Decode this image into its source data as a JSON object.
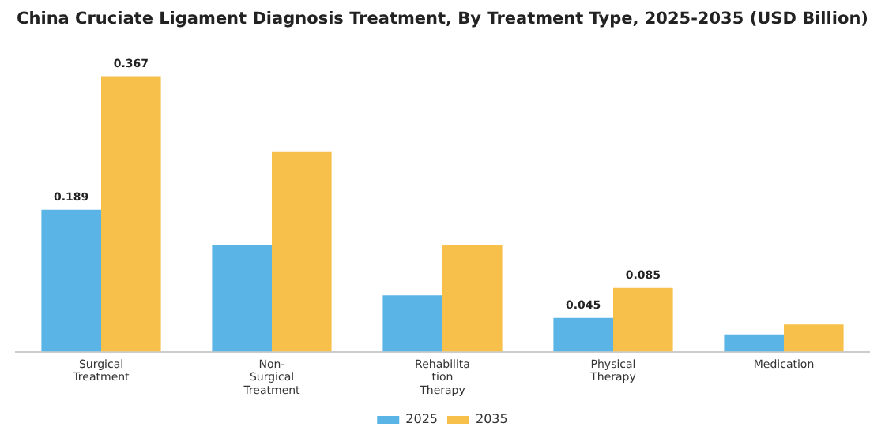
{
  "chart_data": {
    "type": "bar",
    "title": "China Cruciate Ligament Diagnosis Treatment, By Treatment Type, 2025-2035 (USD Billion)",
    "categories": [
      "Surgical\nTreatment",
      "Non-\nSurgical\nTreatment",
      "Rehabilita\ntion\nTherapy",
      "Physical\nTherapy",
      "Medication"
    ],
    "series": [
      {
        "name": "2025",
        "color": "#5ab4e5",
        "values": [
          0.189,
          0.142,
          0.075,
          0.045,
          0.023
        ],
        "value_labels": [
          "0.189",
          null,
          null,
          "0.045",
          null
        ]
      },
      {
        "name": "2035",
        "color": "#f7c04a",
        "values": [
          0.367,
          0.267,
          0.142,
          0.085,
          0.036
        ],
        "value_labels": [
          "0.367",
          null,
          null,
          "0.085",
          null
        ]
      }
    ],
    "grid": false,
    "legend": "bottom"
  }
}
